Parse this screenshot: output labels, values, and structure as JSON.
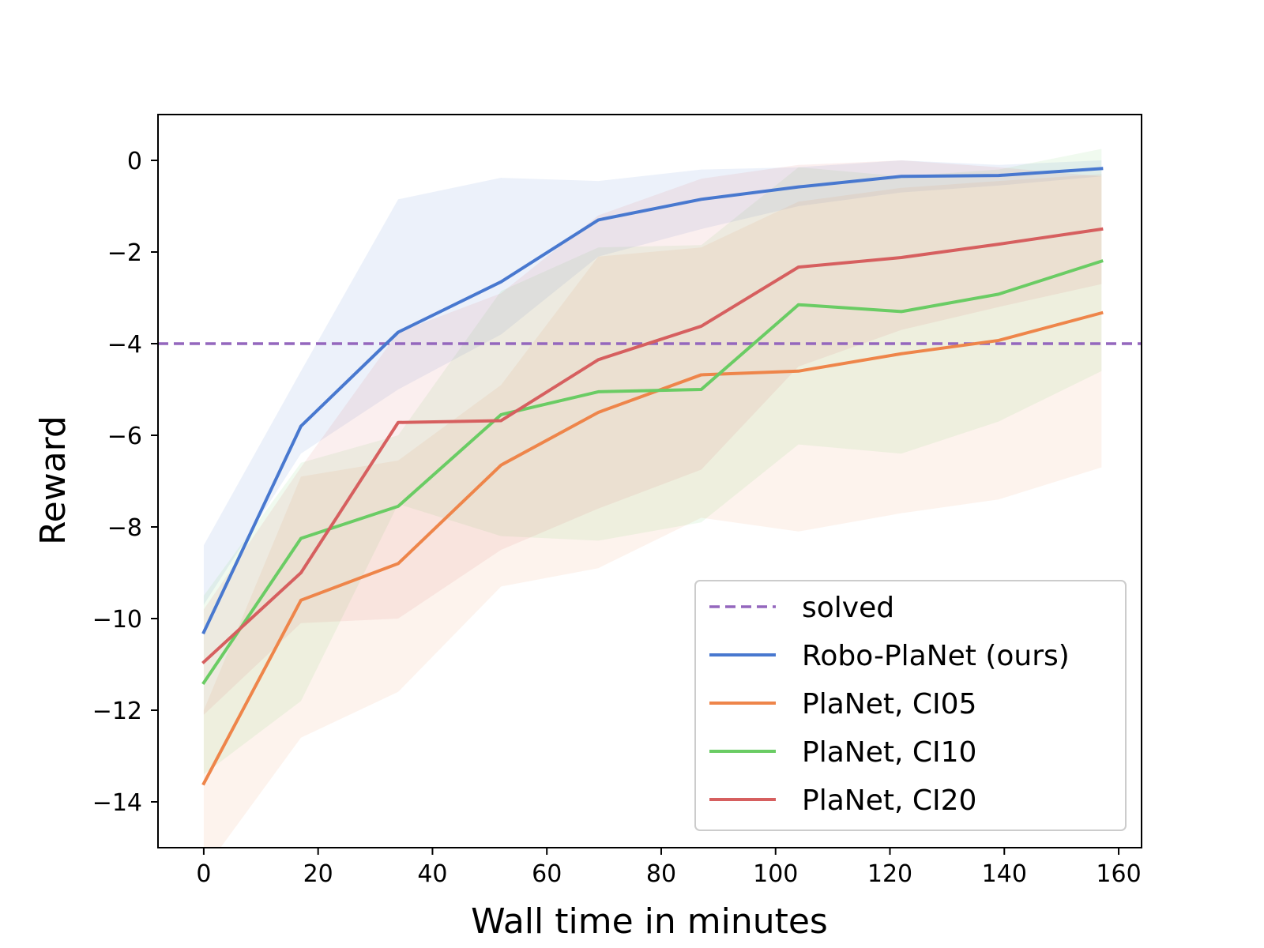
{
  "chart_data": {
    "type": "line",
    "title": "",
    "xlabel": "Wall time in minutes",
    "ylabel": "Reward",
    "xlim": [
      -8,
      164
    ],
    "ylim": [
      -15,
      1
    ],
    "xticks": [
      0,
      20,
      40,
      60,
      80,
      100,
      120,
      140,
      160
    ],
    "yticks": [
      0,
      -2,
      -4,
      -6,
      -8,
      -10,
      -12,
      -14
    ],
    "xtick_labels": [
      "0",
      "20",
      "40",
      "60",
      "80",
      "100",
      "120",
      "140",
      "160"
    ],
    "ytick_labels": [
      "0",
      "−2",
      "−4",
      "−6",
      "−8",
      "−10",
      "−12",
      "−14"
    ],
    "grid": false,
    "legend_position": "lower-right",
    "reference_line": {
      "name": "solved",
      "y": -4,
      "color": "#9467bd",
      "style": "dashed"
    },
    "x": [
      0,
      17,
      34,
      52,
      69,
      87,
      104,
      122,
      139,
      157
    ],
    "series": [
      {
        "name": "Robo-PlaNet (ours)",
        "color": "#4878cf",
        "values": [
          -10.3,
          -5.8,
          -3.75,
          -2.65,
          -1.3,
          -0.85,
          -0.58,
          -0.35,
          -0.33,
          -0.18
        ],
        "lower": [
          -9.7,
          -6.4,
          -5.0,
          -3.8,
          -2.1,
          -1.5,
          -1.0,
          -0.7,
          -0.55,
          -0.35
        ],
        "upper": [
          -8.4,
          -4.6,
          -0.85,
          -0.38,
          -0.45,
          -0.2,
          -0.15,
          0.0,
          -0.1,
          0.0
        ]
      },
      {
        "name": "PlaNet, CI05",
        "color": "#ee854a",
        "values": [
          -13.6,
          -9.6,
          -8.8,
          -6.65,
          -5.5,
          -4.68,
          -4.6,
          -4.22,
          -3.93,
          -3.33
        ],
        "lower": [
          -15.5,
          -12.6,
          -11.6,
          -9.3,
          -8.9,
          -7.8,
          -8.1,
          -7.7,
          -7.4,
          -6.7
        ],
        "upper": [
          -12.0,
          -6.9,
          -6.55,
          -4.9,
          -2.1,
          -1.9,
          -0.9,
          -0.6,
          -0.45,
          -0.3
        ]
      },
      {
        "name": "PlaNet, CI10",
        "color": "#6acc64",
        "values": [
          -11.4,
          -8.25,
          -7.55,
          -5.55,
          -5.05,
          -5.0,
          -3.15,
          -3.3,
          -2.92,
          -2.2
        ],
        "lower": [
          -13.4,
          -11.8,
          -7.5,
          -8.2,
          -8.3,
          -7.9,
          -6.2,
          -6.4,
          -5.7,
          -4.6
        ],
        "upper": [
          -9.5,
          -6.6,
          -6.0,
          -2.85,
          -1.9,
          -1.85,
          -0.15,
          -0.35,
          -0.2,
          0.25
        ]
      },
      {
        "name": "PlaNet, CI20",
        "color": "#d65f5f",
        "values": [
          -10.95,
          -9.0,
          -5.72,
          -5.68,
          -4.35,
          -3.62,
          -2.33,
          -2.12,
          -1.83,
          -1.5
        ],
        "lower": [
          -12.1,
          -10.1,
          -10.0,
          -8.5,
          -7.6,
          -6.75,
          -4.5,
          -3.7,
          -3.2,
          -2.7
        ],
        "upper": [
          -9.8,
          -6.7,
          -3.75,
          -2.9,
          -1.2,
          -0.4,
          -0.1,
          0.0,
          -0.15,
          -0.35
        ]
      }
    ]
  },
  "legend": {
    "items": [
      "solved",
      "Robo-PlaNet (ours)",
      "PlaNet, CI05",
      "PlaNet, CI10",
      "PlaNet, CI20"
    ]
  }
}
